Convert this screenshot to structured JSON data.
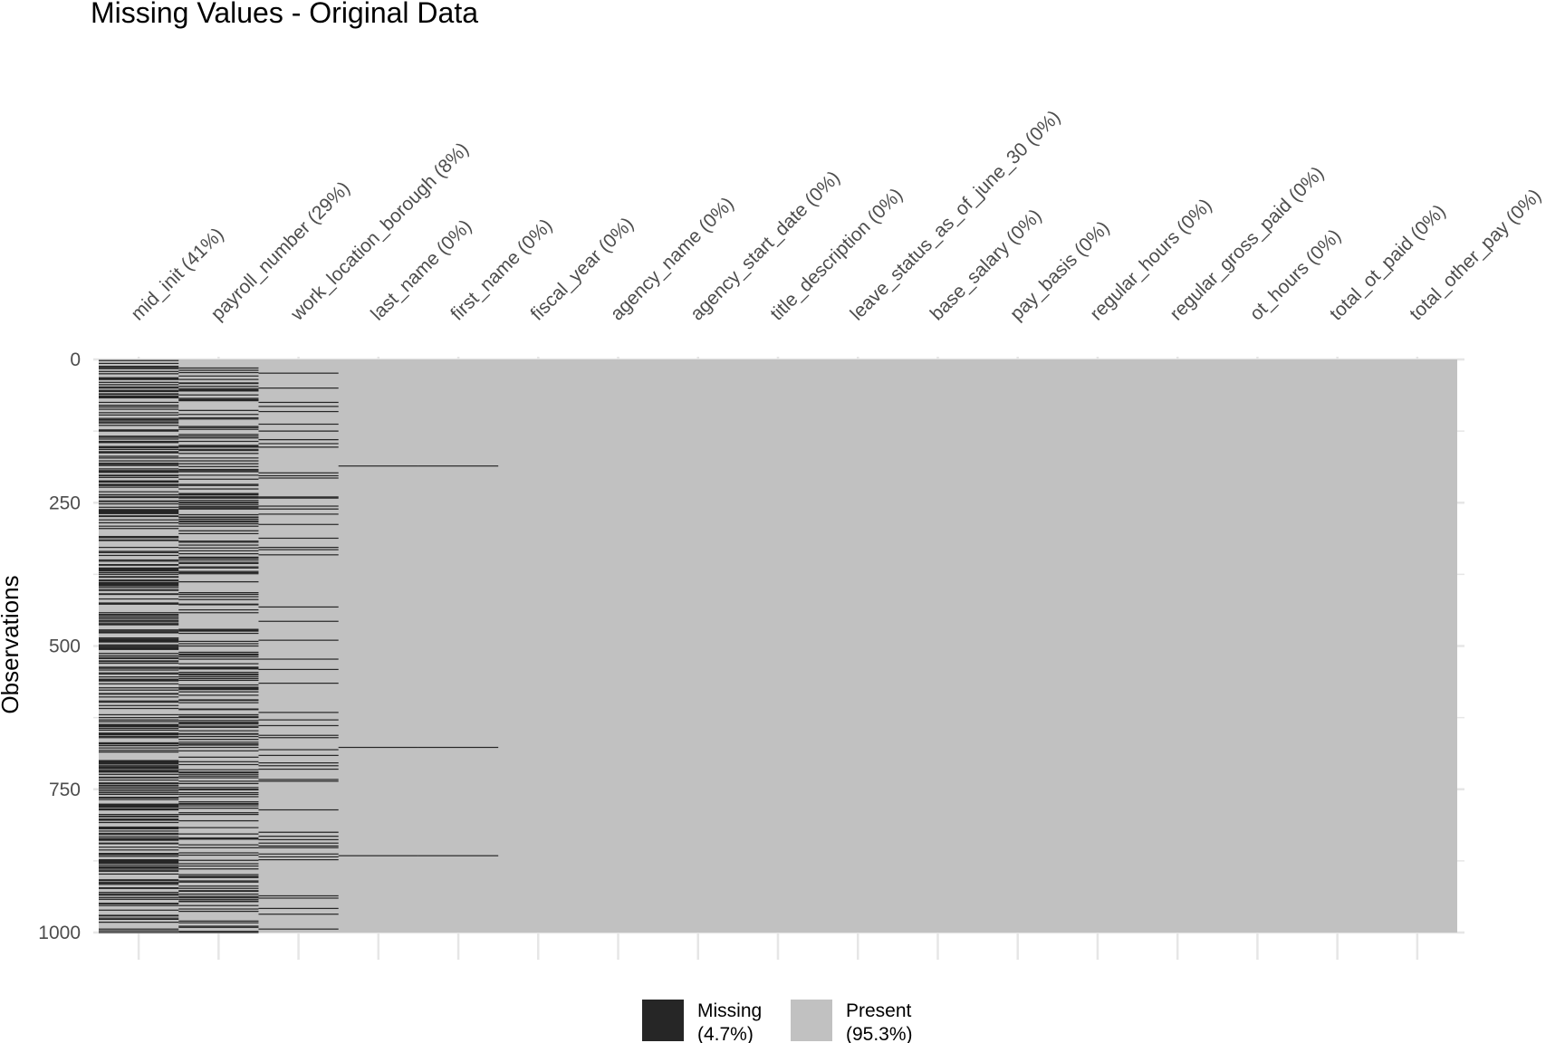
{
  "chart_data": {
    "type": "heatmap",
    "title": "Missing Values - Original Data",
    "ylabel": "Observations",
    "xlabel": "",
    "ylim": [
      0,
      1000
    ],
    "y_ticks": [
      0,
      250,
      500,
      750,
      1000
    ],
    "grid": true,
    "legend_position": "bottom",
    "colors": {
      "missing": "#262626",
      "present": "#c1c1c1"
    },
    "columns": [
      "mid_init (41%)",
      "payroll_number (29%)",
      "work_location_borough (8%)",
      "last_name (0%)",
      "first_name (0%)",
      "fiscal_year (0%)",
      "agency_name (0%)",
      "agency_start_date (0%)",
      "title_description (0%)",
      "leave_status_as_of_june_30 (0%)",
      "base_salary (0%)",
      "pay_basis (0%)",
      "regular_hours (0%)",
      "regular_gross_paid (0%)",
      "ot_hours (0%)",
      "total_ot_paid (0%)",
      "total_other_pay (0%)"
    ],
    "missing_fraction": [
      0.41,
      0.29,
      0.08,
      0,
      0,
      0,
      0,
      0,
      0,
      0,
      0,
      0,
      0,
      0,
      0,
      0,
      0
    ],
    "known_missing_rows": {
      "last_name (0%)": [
        185,
        676,
        865
      ],
      "first_name (0%)": [
        185,
        676,
        865
      ]
    },
    "legend": [
      {
        "key": "missing",
        "label": "Missing",
        "pct": "(4.7%)"
      },
      {
        "key": "present",
        "label": "Present",
        "pct": "(95.3%)"
      }
    ]
  }
}
